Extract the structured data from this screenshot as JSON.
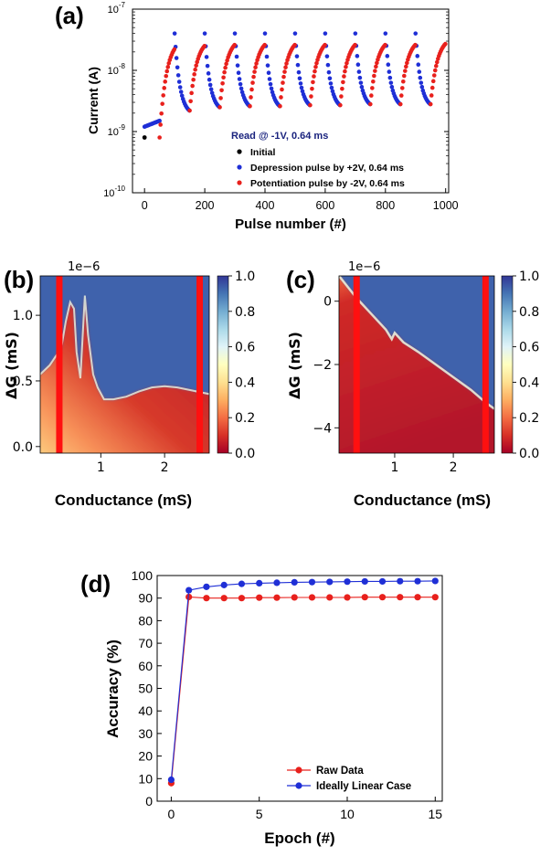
{
  "chart_data": [
    {
      "id": "a",
      "panel_label": "(a)",
      "type": "scatter",
      "xlabel": "Pulse number (#)",
      "ylabel": "Current (A)",
      "yscale": "log",
      "xlim": [
        -40,
        1010
      ],
      "ylim": [
        1e-10,
        1e-07
      ],
      "xticks": [
        0,
        200,
        400,
        600,
        800,
        1000
      ],
      "xtick_labels": [
        "0",
        "200",
        "400",
        "600",
        "800",
        "1000"
      ],
      "yticks": [
        1e-10,
        1e-09,
        1e-08,
        1e-07
      ],
      "ytick_labels": [
        {
          "base": "10",
          "exp": "-10"
        },
        {
          "base": "10",
          "exp": "-9"
        },
        {
          "base": "10",
          "exp": "-8"
        },
        {
          "base": "10",
          "exp": "-7"
        }
      ],
      "legend_title": "Read @ -1V, 0.64 ms",
      "legend_title_color": "#1a237e",
      "legend_position": "bottom-right",
      "series": [
        {
          "name": "Initial",
          "color": "#000000",
          "points": [
            [
              0,
              8e-10
            ]
          ]
        },
        {
          "name": "Depression pulse by +2V, 0.64 ms",
          "color": "#1f2fd6",
          "segments": [
            {
              "x_start": 0,
              "x_end": 50,
              "y_start": 1.2e-09,
              "y_end": 1.5e-09
            },
            {
              "x_start": 100,
              "x_end": 149,
              "y_start": 4e-08,
              "y_end": 2.2e-09
            },
            {
              "x_start": 200,
              "x_end": 249,
              "y_start": 4e-08,
              "y_end": 2.5e-09
            },
            {
              "x_start": 300,
              "x_end": 349,
              "y_start": 4e-08,
              "y_end": 2.6e-09
            },
            {
              "x_start": 400,
              "x_end": 449,
              "y_start": 4e-08,
              "y_end": 2.6e-09
            },
            {
              "x_start": 500,
              "x_end": 549,
              "y_start": 4e-08,
              "y_end": 2.7e-09
            },
            {
              "x_start": 600,
              "x_end": 649,
              "y_start": 4e-08,
              "y_end": 2.7e-09
            },
            {
              "x_start": 700,
              "x_end": 749,
              "y_start": 4e-08,
              "y_end": 2.8e-09
            },
            {
              "x_start": 800,
              "x_end": 849,
              "y_start": 4e-08,
              "y_end": 2.8e-09
            },
            {
              "x_start": 900,
              "x_end": 949,
              "y_start": 4e-08,
              "y_end": 2.8e-09
            }
          ]
        },
        {
          "name": "Potentiation pulse by -2V, 0.64 ms",
          "color": "#e8201c",
          "segments": [
            {
              "x_start": 50,
              "x_end": 99,
              "y_start": 8e-10,
              "y_end": 2.2e-08
            },
            {
              "x_start": 150,
              "x_end": 199,
              "y_start": 2.2e-09,
              "y_end": 2.5e-08
            },
            {
              "x_start": 250,
              "x_end": 299,
              "y_start": 2.5e-09,
              "y_end": 2.6e-08
            },
            {
              "x_start": 350,
              "x_end": 399,
              "y_start": 2.6e-09,
              "y_end": 2.6e-08
            },
            {
              "x_start": 450,
              "x_end": 499,
              "y_start": 2.6e-09,
              "y_end": 2.6e-08
            },
            {
              "x_start": 550,
              "x_end": 599,
              "y_start": 2.7e-09,
              "y_end": 2.6e-08
            },
            {
              "x_start": 650,
              "x_end": 699,
              "y_start": 2.7e-09,
              "y_end": 2.6e-08
            },
            {
              "x_start": 750,
              "x_end": 799,
              "y_start": 2.8e-09,
              "y_end": 2.6e-08
            },
            {
              "x_start": 850,
              "x_end": 899,
              "y_start": 2.8e-09,
              "y_end": 2.6e-08
            },
            {
              "x_start": 950,
              "x_end": 999,
              "y_start": 2.8e-09,
              "y_end": 2.7e-08
            }
          ]
        }
      ]
    },
    {
      "id": "b",
      "panel_label": "(b)",
      "type": "heatmap",
      "xlabel": "Conductance (mS)",
      "ylabel": "ΔG (mS)",
      "scale_label": "1e−6",
      "xlim": [
        0.05,
        2.7
      ],
      "ylim": [
        -0.05,
        1.3
      ],
      "xticks": [
        1,
        2
      ],
      "xtick_labels": [
        "1",
        "2"
      ],
      "yticks": [
        0.0,
        0.5,
        1.0
      ],
      "ytick_labels": [
        "0.0",
        "0.5",
        "1.0"
      ],
      "colormap": "RdYlBu_r",
      "colorbar_range": [
        0.0,
        1.0
      ],
      "colorbar_ticks": [
        "0.0",
        "0.2",
        "0.4",
        "0.6",
        "0.8",
        "1.0"
      ],
      "boundary_curve": [
        [
          0.05,
          0.55
        ],
        [
          0.2,
          0.62
        ],
        [
          0.38,
          0.75
        ],
        [
          0.45,
          0.95
        ],
        [
          0.52,
          1.1
        ],
        [
          0.58,
          1.05
        ],
        [
          0.62,
          0.72
        ],
        [
          0.68,
          0.52
        ],
        [
          0.75,
          1.15
        ],
        [
          0.8,
          0.85
        ],
        [
          0.88,
          0.55
        ],
        [
          0.95,
          0.45
        ],
        [
          1.05,
          0.36
        ],
        [
          1.2,
          0.36
        ],
        [
          1.4,
          0.38
        ],
        [
          1.6,
          0.42
        ],
        [
          1.8,
          0.45
        ],
        [
          2.0,
          0.46
        ],
        [
          2.2,
          0.45
        ],
        [
          2.4,
          0.43
        ],
        [
          2.7,
          0.4
        ]
      ],
      "vertical_markers_x": [
        0.35,
        2.55
      ],
      "marker_color": "#ff1010"
    },
    {
      "id": "c",
      "panel_label": "(c)",
      "type": "heatmap",
      "xlabel": "Conductance (mS)",
      "ylabel": "ΔG (mS)",
      "scale_label": "1e−6",
      "xlim": [
        0.05,
        2.7
      ],
      "ylim": [
        -4.8,
        0.8
      ],
      "xticks": [
        1,
        2
      ],
      "xtick_labels": [
        "1",
        "2"
      ],
      "yticks": [
        -4,
        -2,
        0
      ],
      "ytick_labels": [
        "−4",
        "−2",
        "0"
      ],
      "colormap": "RdYlBu_r",
      "colorbar_range": [
        0.0,
        1.0
      ],
      "colorbar_ticks": [
        "0.0",
        "0.2",
        "0.4",
        "0.6",
        "0.8",
        "1.0"
      ],
      "boundary_curve": [
        [
          0.05,
          0.8
        ],
        [
          0.35,
          0.1
        ],
        [
          0.6,
          -0.4
        ],
        [
          0.85,
          -0.9
        ],
        [
          0.95,
          -1.2
        ],
        [
          1.0,
          -1.0
        ],
        [
          1.15,
          -1.3
        ],
        [
          1.4,
          -1.6
        ],
        [
          1.7,
          -2.0
        ],
        [
          2.0,
          -2.4
        ],
        [
          2.3,
          -2.8
        ],
        [
          2.55,
          -3.2
        ],
        [
          2.7,
          -3.4
        ]
      ],
      "vertical_markers_x": [
        0.35,
        2.55
      ],
      "marker_color": "#ff1010"
    },
    {
      "id": "d",
      "panel_label": "(d)",
      "type": "line",
      "xlabel": "Epoch (#)",
      "ylabel": "Accuracy (%)",
      "xlim": [
        -0.8,
        15.4
      ],
      "ylim": [
        0,
        100
      ],
      "xticks": [
        0,
        5,
        10,
        15
      ],
      "xtick_labels": [
        "0",
        "5",
        "10",
        "15"
      ],
      "yticks": [
        0,
        10,
        20,
        30,
        40,
        50,
        60,
        70,
        80,
        90,
        100
      ],
      "ytick_labels": [
        "0",
        "10",
        "20",
        "30",
        "40",
        "50",
        "60",
        "70",
        "80",
        "90",
        "100"
      ],
      "legend_position": "bottom-right",
      "x": [
        0,
        1,
        2,
        3,
        4,
        5,
        6,
        7,
        8,
        9,
        10,
        11,
        12,
        13,
        14,
        15
      ],
      "series": [
        {
          "name": "Raw Data",
          "color": "#e8201c",
          "values": [
            8,
            90.5,
            90.0,
            90.0,
            90.0,
            90.2,
            90.2,
            90.3,
            90.3,
            90.3,
            90.3,
            90.4,
            90.4,
            90.4,
            90.4,
            90.4
          ]
        },
        {
          "name": "Ideally Linear Case",
          "color": "#1f2fd6",
          "values": [
            9.5,
            93.5,
            95.0,
            95.8,
            96.3,
            96.6,
            96.8,
            97.0,
            97.1,
            97.2,
            97.3,
            97.4,
            97.4,
            97.5,
            97.5,
            97.6
          ]
        }
      ]
    }
  ]
}
